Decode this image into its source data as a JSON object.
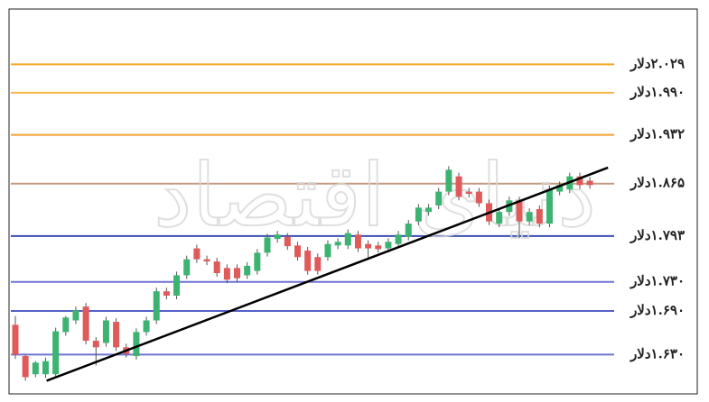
{
  "chart_data": {
    "type": "candlestick",
    "watermark": "دنیای اقتصاد",
    "ylim": [
      1.576,
      2.105
    ],
    "yticks": [
      {
        "value": 2.029,
        "label": "۲.۰۲۹دلار"
      },
      {
        "value": 1.99,
        "label": "۱.۹۹۰دلار"
      },
      {
        "value": 1.932,
        "label": "۱.۹۳۲دلار"
      },
      {
        "value": 1.865,
        "label": "۱.۸۶۵دلار"
      },
      {
        "value": 1.793,
        "label": "۱.۷۹۳دلار"
      },
      {
        "value": 1.73,
        "label": "۱.۷۳۰دلار"
      },
      {
        "value": 1.69,
        "label": "۱.۶۹۰دلار"
      },
      {
        "value": 1.63,
        "label": "۱.۶۳۰دلار"
      }
    ],
    "ytick_colors": [
      "#f5a623",
      "#f7b54a",
      "#f2a035",
      "#c49a80",
      "#3a4fb0",
      "#6f74d6",
      "#5560c8",
      "#7075d0"
    ],
    "up_color": "#3cb371",
    "down_color": "#e05a5a",
    "open": [
      1.671,
      1.628,
      1.603,
      1.603,
      1.603,
      1.661,
      1.677,
      1.696,
      1.649,
      1.646,
      1.675,
      1.64,
      1.628,
      1.661,
      1.677,
      1.717,
      1.711,
      1.739,
      1.776,
      1.761,
      1.758,
      1.749,
      1.749,
      1.739,
      1.745,
      1.77,
      1.789,
      1.792,
      1.78,
      1.773,
      1.764,
      1.764,
      1.78,
      1.78,
      1.795,
      1.782,
      1.78,
      1.776,
      1.782,
      1.792,
      1.813,
      1.826,
      1.835,
      1.854,
      1.875,
      1.854,
      1.854,
      1.838,
      1.81,
      1.826,
      1.842,
      1.813,
      1.83,
      1.81,
      1.854,
      1.857,
      1.875,
      1.869
    ],
    "high": [
      1.683,
      1.63,
      1.621,
      1.626,
      1.667,
      1.683,
      1.696,
      1.701,
      1.654,
      1.682,
      1.68,
      1.645,
      1.666,
      1.682,
      1.722,
      1.722,
      1.744,
      1.766,
      1.781,
      1.766,
      1.763,
      1.754,
      1.754,
      1.757,
      1.775,
      1.796,
      1.8,
      1.797,
      1.785,
      1.778,
      1.769,
      1.787,
      1.79,
      1.802,
      1.8,
      1.787,
      1.785,
      1.79,
      1.8,
      1.815,
      1.837,
      1.837,
      1.859,
      1.889,
      1.88,
      1.859,
      1.859,
      1.843,
      1.831,
      1.847,
      1.847,
      1.831,
      1.835,
      1.862,
      1.868,
      1.88,
      1.88,
      1.874
    ],
    "low": [
      1.624,
      1.594,
      1.599,
      1.598,
      1.598,
      1.656,
      1.672,
      1.644,
      1.615,
      1.641,
      1.635,
      1.626,
      1.623,
      1.656,
      1.672,
      1.706,
      1.706,
      1.734,
      1.756,
      1.753,
      1.737,
      1.728,
      1.73,
      1.734,
      1.74,
      1.765,
      1.784,
      1.774,
      1.759,
      1.74,
      1.74,
      1.759,
      1.775,
      1.775,
      1.771,
      1.76,
      1.77,
      1.771,
      1.777,
      1.787,
      1.808,
      1.821,
      1.83,
      1.849,
      1.842,
      1.846,
      1.833,
      1.808,
      1.805,
      1.821,
      1.79,
      1.808,
      1.805,
      1.805,
      1.849,
      1.852,
      1.858,
      1.858
    ],
    "close": [
      1.63,
      1.599,
      1.619,
      1.621,
      1.662,
      1.681,
      1.691,
      1.649,
      1.64,
      1.677,
      1.64,
      1.631,
      1.661,
      1.677,
      1.717,
      1.711,
      1.739,
      1.761,
      1.761,
      1.758,
      1.742,
      1.733,
      1.735,
      1.752,
      1.77,
      1.791,
      1.795,
      1.779,
      1.764,
      1.745,
      1.745,
      1.782,
      1.785,
      1.797,
      1.776,
      1.776,
      1.775,
      1.785,
      1.795,
      1.81,
      1.832,
      1.832,
      1.854,
      1.884,
      1.847,
      1.851,
      1.838,
      1.813,
      1.826,
      1.842,
      1.813,
      1.826,
      1.81,
      1.857,
      1.863,
      1.875,
      1.863,
      1.863
    ],
    "trend_line": {
      "x": [
        3.1,
        58.8
      ],
      "values": [
        1.594,
        1.887
      ]
    }
  }
}
